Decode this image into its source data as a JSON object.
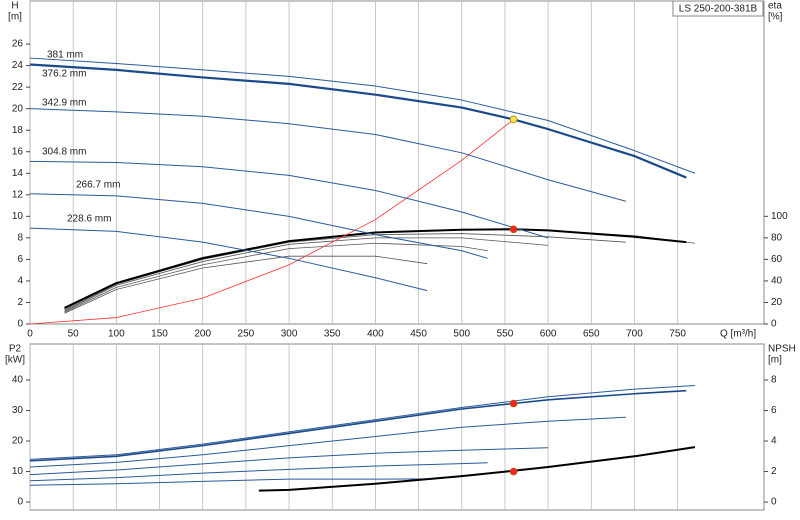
{
  "chart_data": [
    {
      "type": "line",
      "title": "LS 250-200-381B",
      "ylabel": "H",
      "ylabel_unit": "[m]",
      "y2label": "eta",
      "y2label_unit": "[%]",
      "xlabel": "Q [m³/h]",
      "xlim": [
        0,
        850
      ],
      "xticks": [
        0,
        50,
        100,
        150,
        200,
        250,
        300,
        350,
        400,
        450,
        500,
        550,
        600,
        650,
        700,
        750
      ],
      "ylim": [
        0,
        30
      ],
      "yticks": [
        0,
        2,
        4,
        6,
        8,
        10,
        12,
        14,
        16,
        18,
        20,
        22,
        24,
        26
      ],
      "y2lim": [
        0,
        300
      ],
      "y2ticks": [
        0,
        20,
        40,
        60,
        80,
        100
      ],
      "grid": "x",
      "series": [
        {
          "x": [
            40,
            100,
            200,
            300,
            400,
            500,
            600,
            700,
            770
          ],
          "values": [
            14,
            38,
            62,
            77,
            85,
            88,
            87,
            82,
            75
          ],
          "axis": "y2",
          "color": "#555555",
          "linewidth": 0.8
        },
        {
          "x": [
            40,
            100,
            200,
            300,
            400,
            500,
            600,
            690
          ],
          "values": [
            13,
            37,
            60,
            76,
            83,
            84,
            81,
            76
          ],
          "axis": "y2",
          "color": "#555555",
          "linewidth": 0.8
        },
        {
          "x": [
            40,
            100,
            200,
            300,
            400,
            500,
            600
          ],
          "values": [
            12,
            36,
            58,
            74,
            80,
            80,
            73
          ],
          "axis": "y2",
          "color": "#555555",
          "linewidth": 0.8
        },
        {
          "x": [
            40,
            100,
            200,
            300,
            400,
            500,
            530
          ],
          "values": [
            11,
            34,
            55,
            70,
            75,
            72,
            68
          ],
          "axis": "y2",
          "color": "#555555",
          "linewidth": 0.8
        },
        {
          "x": [
            40,
            100,
            200,
            300,
            400,
            460
          ],
          "values": [
            10,
            32,
            52,
            63,
            63,
            56
          ],
          "axis": "y2",
          "color": "#555555",
          "linewidth": 0.8
        },
        {
          "x": [
            40,
            100,
            200,
            300,
            400,
            500,
            560,
            600,
            700,
            760
          ],
          "values": [
            15,
            38,
            61,
            77,
            85,
            87.5,
            88,
            87,
            81,
            76
          ],
          "axis": "y2",
          "color": "#000000",
          "linewidth": 2
        },
        {
          "x": [
            0,
            100,
            200,
            300,
            400,
            500,
            560
          ],
          "values": [
            0,
            0.6,
            2.4,
            5.5,
            9.7,
            15.2,
            19.0
          ],
          "color": "#ff3030",
          "linewidth": 0.8
        },
        {
          "name": "381 mm",
          "x": [
            0,
            100,
            200,
            300,
            400,
            500,
            600,
            700,
            770
          ],
          "values": [
            24.7,
            24.2,
            23.6,
            23.0,
            22.1,
            20.8,
            18.9,
            16.1,
            14.0
          ],
          "color": "#2a5a9a",
          "linewidth": 1
        },
        {
          "name": "376.2 mm",
          "x": [
            0,
            100,
            200,
            300,
            400,
            500,
            560,
            600,
            700,
            760
          ],
          "values": [
            24.1,
            23.6,
            22.9,
            22.3,
            21.3,
            20.1,
            19.0,
            18.1,
            15.6,
            13.6
          ],
          "color": "#1a4a8a",
          "linewidth": 2.2
        },
        {
          "name": "342.9 mm",
          "x": [
            0,
            100,
            200,
            300,
            400,
            500,
            600,
            690
          ],
          "values": [
            20.0,
            19.7,
            19.3,
            18.6,
            17.6,
            15.9,
            13.4,
            11.4
          ],
          "color": "#2a5a9a",
          "linewidth": 1
        },
        {
          "name": "304.8 mm",
          "x": [
            0,
            100,
            200,
            300,
            400,
            500,
            600
          ],
          "values": [
            15.1,
            15.0,
            14.6,
            13.8,
            12.4,
            10.4,
            8.0
          ],
          "color": "#2a5a9a",
          "linewidth": 1
        },
        {
          "name": "266.7 mm",
          "x": [
            0,
            100,
            200,
            300,
            400,
            500,
            530
          ],
          "values": [
            12.1,
            11.9,
            11.2,
            10.0,
            8.3,
            6.8,
            6.1
          ],
          "color": "#2a5a9a",
          "linewidth": 1
        },
        {
          "name": "228.6 mm",
          "x": [
            0,
            100,
            200,
            300,
            400,
            460
          ],
          "values": [
            8.9,
            8.6,
            7.6,
            6.1,
            4.3,
            3.1
          ],
          "color": "#2a5a9a",
          "linewidth": 1
        },
        {
          "type": "scatter",
          "x": [
            560
          ],
          "values": [
            88
          ],
          "axis": "y2",
          "color": "#ff2020"
        },
        {
          "type": "scatter",
          "x": [
            560
          ],
          "values": [
            19.0
          ],
          "color": "#ffe040"
        }
      ]
    },
    {
      "type": "line",
      "ylabel": "P2",
      "ylabel_unit": "[kW]",
      "y2label": "NPSH",
      "y2label_unit": "[m]",
      "xlim": [
        0,
        850
      ],
      "ylim": [
        -2.6,
        51.8
      ],
      "yticks": [
        0,
        10,
        20,
        30,
        40
      ],
      "y2lim": [
        -0.52,
        10.36
      ],
      "y2ticks": [
        0,
        2,
        4,
        6,
        8
      ],
      "grid": "x",
      "series": [
        {
          "x": [
            0,
            100,
            200,
            300,
            400,
            500,
            600,
            700,
            770
          ],
          "values": [
            14,
            15.5,
            19,
            23,
            27,
            31,
            34.5,
            37,
            38.2
          ],
          "color": "#2a5a9a",
          "linewidth": 1
        },
        {
          "x": [
            0,
            100,
            200,
            300,
            400,
            500,
            560,
            600,
            700,
            760
          ],
          "values": [
            13.5,
            15,
            18.5,
            22.5,
            26.5,
            30.5,
            32.3,
            33.5,
            35.5,
            36.5
          ],
          "color": "#1a4a8a",
          "linewidth": 1.6
        },
        {
          "x": [
            0,
            100,
            200,
            300,
            400,
            500,
            600,
            690
          ],
          "values": [
            11.5,
            13,
            15.5,
            18.5,
            21.5,
            24.5,
            26.5,
            27.8
          ],
          "color": "#2a5a9a",
          "linewidth": 1
        },
        {
          "x": [
            0,
            100,
            200,
            300,
            400,
            500,
            600
          ],
          "values": [
            9,
            10.5,
            12.5,
            14.5,
            16,
            17,
            17.8
          ],
          "color": "#2a5a9a",
          "linewidth": 1
        },
        {
          "x": [
            0,
            100,
            200,
            300,
            400,
            500,
            530
          ],
          "values": [
            7,
            8,
            9.5,
            10.7,
            11.8,
            12.6,
            12.9
          ],
          "color": "#2a5a9a",
          "linewidth": 1
        },
        {
          "x": [
            0,
            100,
            200,
            300,
            400,
            460
          ],
          "values": [
            5.5,
            6,
            6.8,
            7.5,
            7.5,
            7.6
          ],
          "color": "#2a5a9a",
          "linewidth": 1
        },
        {
          "x": [
            265,
            300,
            400,
            500,
            560,
            600,
            700,
            770
          ],
          "values": [
            0.75,
            0.8,
            1.2,
            1.7,
            2.05,
            2.3,
            3.0,
            3.6
          ],
          "axis": "y2",
          "color": "#000000",
          "linewidth": 2
        },
        {
          "type": "scatter",
          "x": [
            560
          ],
          "values": [
            32.3
          ],
          "color": "#ff2020"
        },
        {
          "type": "scatter",
          "x": [
            560
          ],
          "values": [
            2.0
          ],
          "axis": "y2",
          "color": "#ff2020"
        }
      ]
    }
  ]
}
